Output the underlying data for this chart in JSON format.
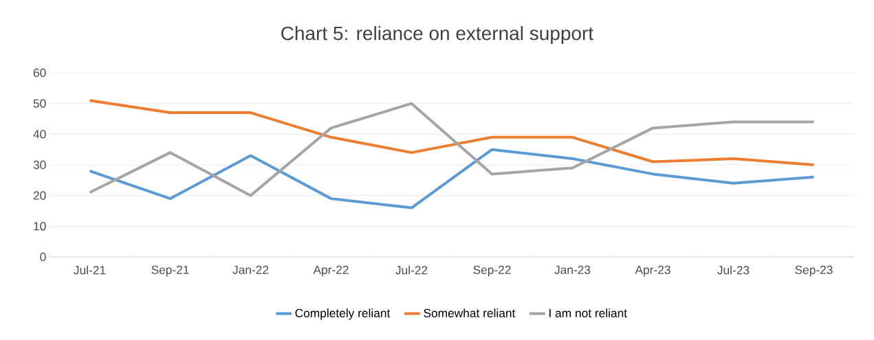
{
  "chart_data": {
    "type": "line",
    "title": "Chart 5: reliance on external support",
    "categories": [
      "Jul-21",
      "Sep-21",
      "Jan-22",
      "Apr-22",
      "Jul-22",
      "Sep-22",
      "Jan-23",
      "Apr-23",
      "Jul-23",
      "Sep-23"
    ],
    "series": [
      {
        "name": "Completely reliant",
        "color": "#5b9bd5",
        "values": [
          28,
          19,
          33,
          19,
          16,
          35,
          32,
          27,
          24,
          26
        ]
      },
      {
        "name": "Somewhat reliant",
        "color": "#ed7d31",
        "values": [
          51,
          47,
          47,
          39,
          34,
          39,
          39,
          31,
          32,
          30
        ]
      },
      {
        "name": "I am not reliant",
        "color": "#a5a5a5",
        "values": [
          21,
          34,
          20,
          42,
          50,
          27,
          29,
          42,
          44,
          44
        ]
      }
    ],
    "ylim": [
      0,
      60
    ],
    "yticks": [
      0,
      10,
      20,
      30,
      40,
      50,
      60
    ],
    "grid": "y",
    "legend": "bottom",
    "marker": "none",
    "line_style": "solid"
  }
}
